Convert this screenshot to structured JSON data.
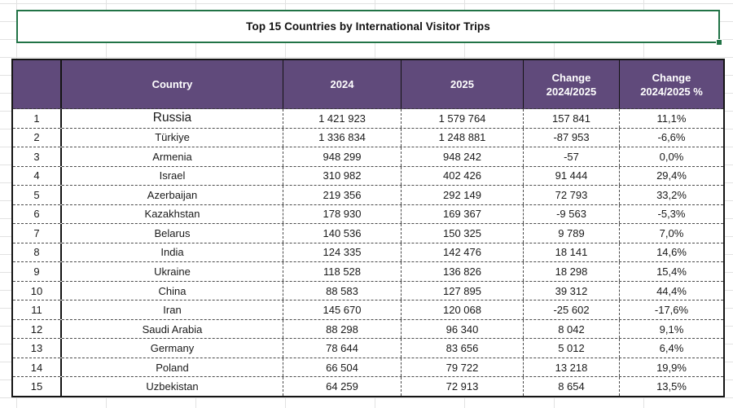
{
  "title": "Top 15 Countries by International Visitor Trips",
  "colors": {
    "header_bg": "#604a7b",
    "header_text": "#ffffff",
    "selection_green": "#217346",
    "table_border": "#141414",
    "gridline": "#e2e2e2"
  },
  "table": {
    "headers": {
      "rank": "",
      "country": "Country",
      "y2024": "2024",
      "y2025": "2025",
      "change": "Change\n2024/2025",
      "change_pct": "Change\n2024/2025 %"
    },
    "rows": [
      {
        "rank": "1",
        "country": "Russia",
        "y2024": "1 421 923",
        "y2025": "1 579 764",
        "change": "157 841",
        "change_pct": "11,1%"
      },
      {
        "rank": "2",
        "country": "Türkiye",
        "y2024": "1 336 834",
        "y2025": "1 248 881",
        "change": "-87 953",
        "change_pct": "-6,6%"
      },
      {
        "rank": "3",
        "country": "Armenia",
        "y2024": "948 299",
        "y2025": "948 242",
        "change": "-57",
        "change_pct": "0,0%"
      },
      {
        "rank": "4",
        "country": "Israel",
        "y2024": "310 982",
        "y2025": "402 426",
        "change": "91 444",
        "change_pct": "29,4%"
      },
      {
        "rank": "5",
        "country": "Azerbaijan",
        "y2024": "219 356",
        "y2025": "292 149",
        "change": "72 793",
        "change_pct": "33,2%"
      },
      {
        "rank": "6",
        "country": "Kazakhstan",
        "y2024": "178 930",
        "y2025": "169 367",
        "change": "-9 563",
        "change_pct": "-5,3%"
      },
      {
        "rank": "7",
        "country": "Belarus",
        "y2024": "140 536",
        "y2025": "150 325",
        "change": "9 789",
        "change_pct": "7,0%"
      },
      {
        "rank": "8",
        "country": "India",
        "y2024": "124 335",
        "y2025": "142 476",
        "change": "18 141",
        "change_pct": "14,6%"
      },
      {
        "rank": "9",
        "country": "Ukraine",
        "y2024": "118 528",
        "y2025": "136 826",
        "change": "18 298",
        "change_pct": "15,4%"
      },
      {
        "rank": "10",
        "country": "China",
        "y2024": "88 583",
        "y2025": "127 895",
        "change": "39 312",
        "change_pct": "44,4%"
      },
      {
        "rank": "11",
        "country": "Iran",
        "y2024": "145 670",
        "y2025": "120 068",
        "change": "-25 602",
        "change_pct": "-17,6%"
      },
      {
        "rank": "12",
        "country": "Saudi Arabia",
        "y2024": "88 298",
        "y2025": "96 340",
        "change": "8 042",
        "change_pct": "9,1%"
      },
      {
        "rank": "13",
        "country": "Germany",
        "y2024": "78 644",
        "y2025": "83 656",
        "change": "5 012",
        "change_pct": "6,4%"
      },
      {
        "rank": "14",
        "country": "Poland",
        "y2024": "66 504",
        "y2025": "79 722",
        "change": "13 218",
        "change_pct": "19,9%"
      },
      {
        "rank": "15",
        "country": "Uzbekistan",
        "y2024": "64 259",
        "y2025": "72 913",
        "change": "8 654",
        "change_pct": "13,5%"
      }
    ]
  }
}
